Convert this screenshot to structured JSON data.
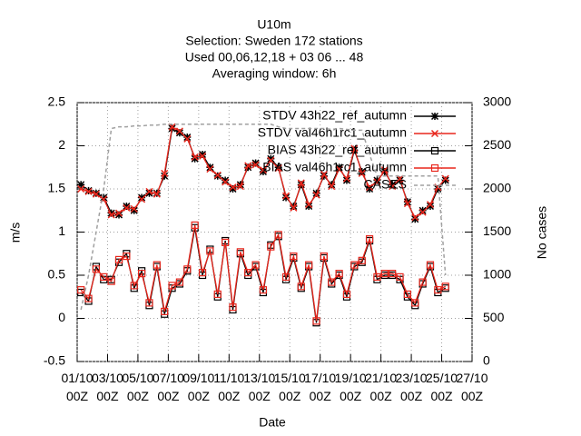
{
  "chart_data": {
    "type": "line",
    "title": [
      "U10m",
      "Selection: Sweden    172 stations",
      "Used  00,06,12,18  + 03 06 ... 48",
      "Averaging window:  6h"
    ],
    "xlabel": "Date",
    "ylabel": "m/s",
    "y2label": "No cases",
    "x": [
      0.25,
      0.75,
      1.25,
      1.75,
      2.25,
      2.75,
      3.25,
      3.75,
      4.25,
      4.75,
      5.25,
      5.75,
      6.25,
      6.75,
      7.25,
      7.75,
      8.25,
      8.75,
      9.25,
      9.75,
      10.25,
      10.75,
      11.25,
      11.75,
      12.25,
      12.75,
      13.25,
      13.75,
      14.25,
      14.75,
      15.25,
      15.75,
      16.25,
      16.75,
      17.25,
      17.75,
      18.25,
      18.75,
      19.25,
      19.75,
      20.25,
      20.75,
      21.25,
      21.75,
      22.25,
      22.75,
      23.25,
      23.75,
      24.25
    ],
    "xlim": [
      0,
      26
    ],
    "xticks": [
      {
        "value": 0,
        "label": "01/10 00Z"
      },
      {
        "value": 2,
        "label": "03/10 00Z"
      },
      {
        "value": 4,
        "label": "05/10 00Z"
      },
      {
        "value": 6,
        "label": "07/10 00Z"
      },
      {
        "value": 8,
        "label": "09/10 00Z"
      },
      {
        "value": 10,
        "label": "11/10 00Z"
      },
      {
        "value": 12,
        "label": "13/10 00Z"
      },
      {
        "value": 14,
        "label": "15/10 00Z"
      },
      {
        "value": 16,
        "label": "17/10 00Z"
      },
      {
        "value": 18,
        "label": "19/10 00Z"
      },
      {
        "value": 20,
        "label": "21/10 00Z"
      },
      {
        "value": 22,
        "label": "23/10 00Z"
      },
      {
        "value": 24,
        "label": "25/10 00Z"
      },
      {
        "value": 26,
        "label": "27/10 00Z"
      }
    ],
    "ylim": [
      -0.5,
      2.5
    ],
    "yticks": [
      -0.5,
      0,
      0.5,
      1,
      1.5,
      2,
      2.5
    ],
    "y2lim": [
      0,
      3000
    ],
    "y2ticks": [
      0,
      500,
      1000,
      1500,
      2000,
      2500,
      3000
    ],
    "grid": true,
    "legend": "top-right",
    "series": [
      {
        "name": "STDV 43h22_ref_autumn",
        "color": "#000000",
        "marker": "star",
        "values": [
          1.55,
          1.48,
          1.45,
          1.4,
          1.22,
          1.2,
          1.3,
          1.25,
          1.4,
          1.45,
          1.45,
          1.65,
          2.2,
          2.15,
          2.1,
          1.85,
          1.9,
          1.75,
          1.65,
          1.6,
          1.5,
          1.55,
          1.75,
          1.8,
          1.7,
          1.85,
          1.75,
          1.4,
          1.3,
          1.55,
          1.3,
          1.45,
          1.65,
          1.55,
          1.75,
          1.6,
          1.95,
          1.7,
          1.5,
          1.6,
          1.7,
          1.55,
          1.6,
          1.35,
          1.15,
          1.25,
          1.3,
          1.5,
          1.6
        ]
      },
      {
        "name": "STDV val46h1rc1_autumn",
        "color": "#e8261c",
        "marker": "cross",
        "values": [
          1.5,
          1.47,
          1.44,
          1.38,
          1.2,
          1.22,
          1.28,
          1.27,
          1.38,
          1.47,
          1.44,
          1.68,
          2.22,
          2.17,
          2.08,
          1.87,
          1.88,
          1.73,
          1.66,
          1.58,
          1.52,
          1.53,
          1.77,
          1.78,
          1.72,
          1.83,
          1.74,
          1.42,
          1.28,
          1.57,
          1.32,
          1.43,
          1.67,
          1.53,
          1.73,
          1.62,
          1.97,
          1.68,
          1.52,
          1.58,
          1.72,
          1.53,
          1.62,
          1.33,
          1.17,
          1.23,
          1.32,
          1.52,
          1.62
        ]
      },
      {
        "name": "BIAS 43h22_ref_autumn",
        "color": "#000000",
        "marker": "square",
        "values": [
          0.3,
          0.2,
          0.6,
          0.45,
          0.45,
          0.65,
          0.75,
          0.35,
          0.55,
          0.15,
          0.6,
          0.05,
          0.35,
          0.4,
          0.55,
          1.05,
          0.5,
          0.8,
          0.25,
          0.9,
          0.1,
          0.75,
          0.5,
          0.6,
          0.3,
          0.85,
          0.95,
          0.45,
          0.7,
          0.35,
          0.6,
          -0.05,
          0.7,
          0.4,
          0.5,
          0.25,
          0.6,
          0.65,
          0.9,
          0.45,
          0.5,
          0.5,
          0.45,
          0.25,
          0.15,
          0.4,
          0.6,
          0.3,
          0.35
        ]
      },
      {
        "name": "BIAS val46h1rc1_autumn",
        "color": "#e8261c",
        "marker": "square",
        "values": [
          0.33,
          0.23,
          0.57,
          0.48,
          0.43,
          0.68,
          0.72,
          0.38,
          0.52,
          0.18,
          0.62,
          0.08,
          0.38,
          0.42,
          0.57,
          1.08,
          0.53,
          0.78,
          0.28,
          0.88,
          0.13,
          0.77,
          0.53,
          0.62,
          0.33,
          0.83,
          0.97,
          0.48,
          0.72,
          0.37,
          0.62,
          -0.03,
          0.72,
          0.42,
          0.52,
          0.28,
          0.62,
          0.67,
          0.92,
          0.48,
          0.52,
          0.52,
          0.48,
          0.28,
          0.18,
          0.42,
          0.62,
          0.33,
          0.37
        ]
      },
      {
        "name": "CASES",
        "color": "#a0a0a0",
        "axis": "y2",
        "dashed": true,
        "values": [
          600,
          1000,
          1500,
          2000,
          2700,
          2720,
          2720,
          2730,
          2730,
          2740,
          2740,
          2750,
          2750,
          2750,
          2750,
          2750,
          2750,
          2750,
          2750,
          2750,
          2750,
          2750,
          2750,
          2750,
          2750,
          2750,
          2720,
          2700,
          2700,
          2700,
          2700,
          2700,
          2700,
          2690,
          2700,
          2690,
          2680,
          2680,
          2400,
          2150,
          2150,
          2150,
          2150,
          2150,
          2150,
          2150,
          2150,
          2150,
          1000
        ]
      }
    ]
  }
}
